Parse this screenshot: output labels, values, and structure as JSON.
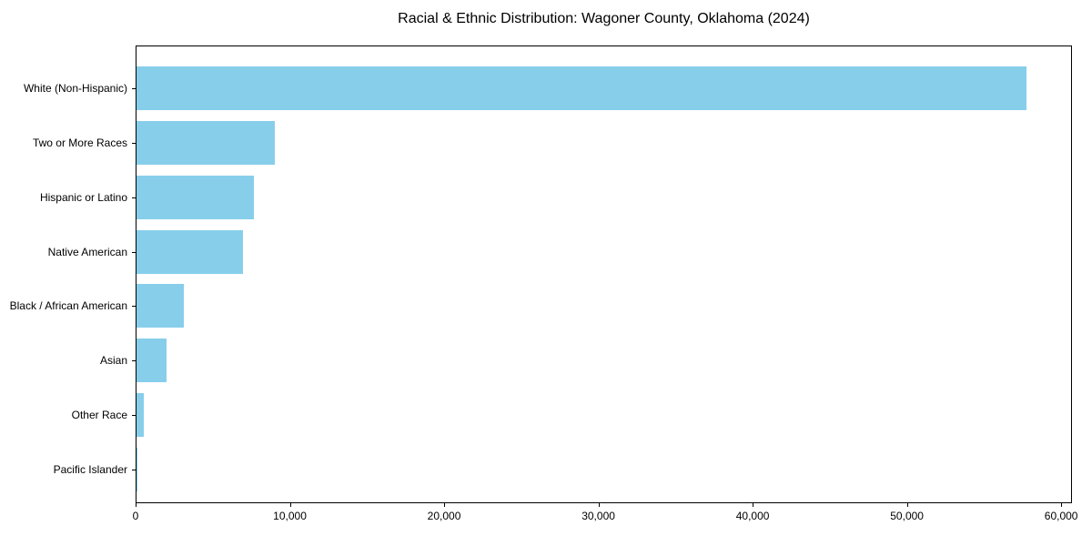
{
  "chart_data": {
    "type": "bar",
    "orientation": "horizontal",
    "title": "Racial & Ethnic Distribution: Wagoner County, Oklahoma (2024)",
    "categories": [
      "White (Non-Hispanic)",
      "Two or More Races",
      "Hispanic or Latino",
      "Native American",
      "Black / African American",
      "Asian",
      "Other Race",
      "Pacific Islander"
    ],
    "values": [
      57800,
      9000,
      7600,
      6900,
      3050,
      1930,
      450,
      30
    ],
    "bar_color": "#87CEEB",
    "axis_color": "#000000",
    "background_color": "#ffffff",
    "xlabel": "",
    "ylabel": "",
    "xlim": [
      0,
      60700
    ],
    "xticks": [
      0,
      10000,
      20000,
      30000,
      40000,
      50000,
      60000
    ],
    "xtick_labels": [
      "0",
      "10,000",
      "20,000",
      "30,000",
      "40,000",
      "50,000",
      "60,000"
    ],
    "grid": false,
    "legend": null
  }
}
